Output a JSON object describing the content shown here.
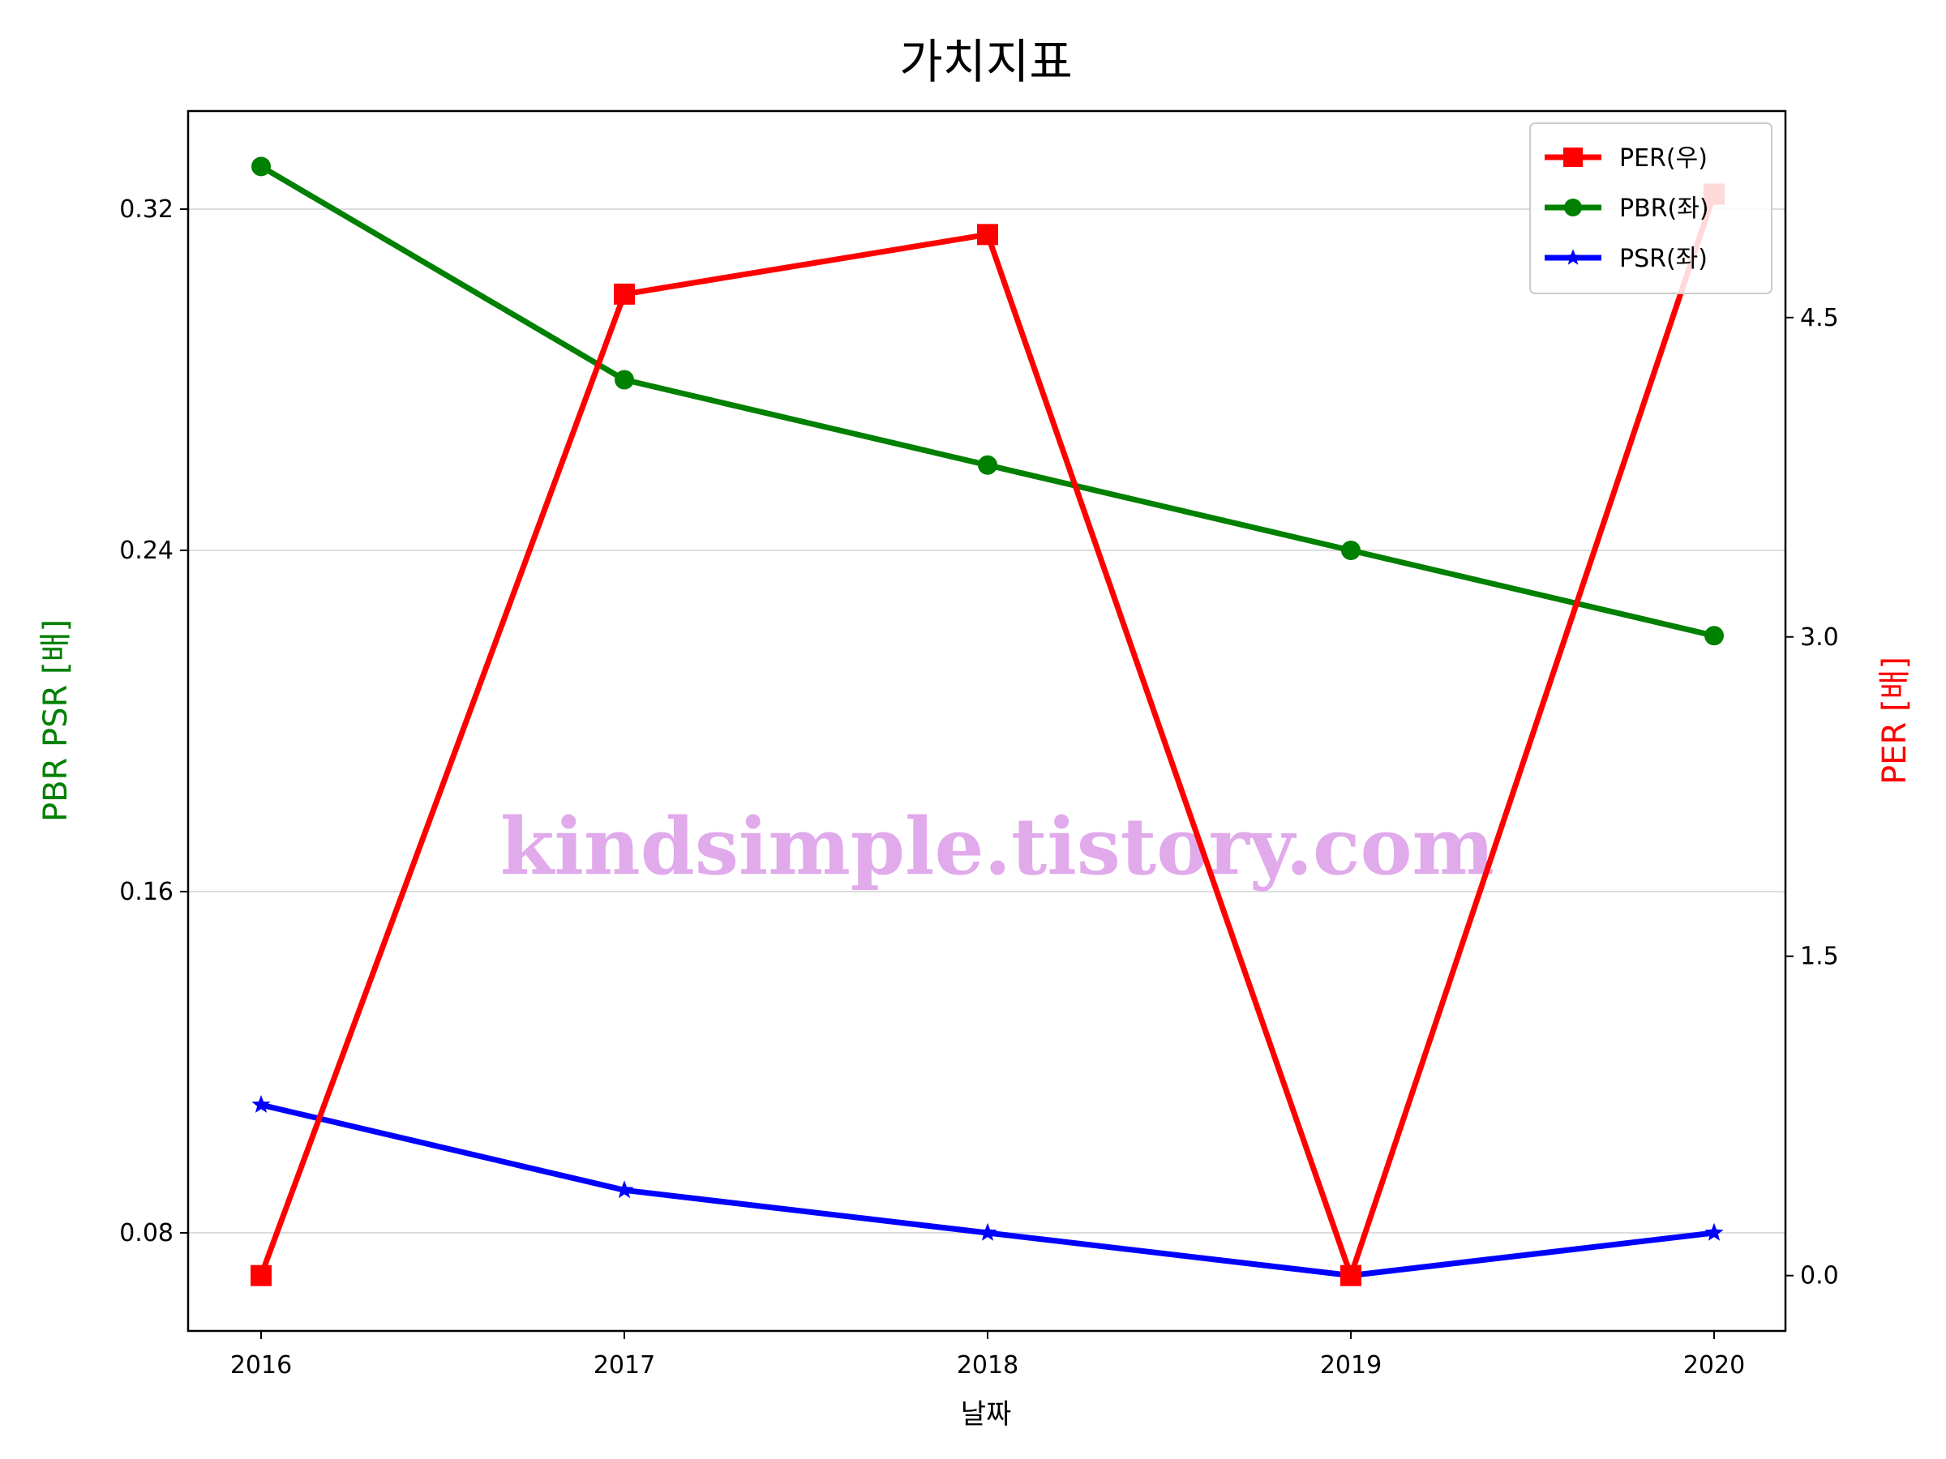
{
  "chart_data": {
    "type": "line",
    "title": "가치지표",
    "xlabel": "날짜",
    "ylabel_left": "PBR PSR [배]",
    "ylabel_right": "PER [배]",
    "categories": [
      "2016",
      "2017",
      "2018",
      "2019",
      "2020"
    ],
    "left_axis": {
      "ylim": [
        0.057,
        0.343
      ],
      "ticks": [
        0.08,
        0.16,
        0.24,
        0.32
      ],
      "tick_labels": [
        "0.08",
        "0.16",
        "0.24",
        "0.32"
      ],
      "grid": true
    },
    "right_axis": {
      "ylim": [
        -0.26,
        5.47
      ],
      "ticks": [
        0.0,
        1.5,
        3.0,
        4.5
      ],
      "tick_labels": [
        "0.0",
        "1.5",
        "3.0",
        "4.5"
      ]
    },
    "series": [
      {
        "name": "PER(우)",
        "axis": "right",
        "color": "#ff0000",
        "marker": "square",
        "values": [
          0.0,
          4.61,
          4.89,
          0.0,
          5.08
        ]
      },
      {
        "name": "PBR(좌)",
        "axis": "left",
        "color": "#008000",
        "marker": "circle",
        "values": [
          0.33,
          0.28,
          0.26,
          0.24,
          0.22
        ]
      },
      {
        "name": "PSR(좌)",
        "axis": "left",
        "color": "#0000ff",
        "marker": "star",
        "values": [
          0.11,
          0.09,
          0.08,
          0.07,
          0.08
        ]
      }
    ],
    "legend_position": "upper-right",
    "watermark": "kindsimple.tistory.com"
  }
}
